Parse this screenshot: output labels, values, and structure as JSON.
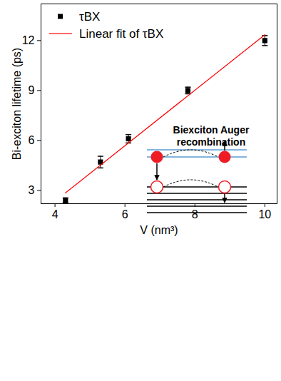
{
  "chart_data": {
    "type": "scatter",
    "x_label": "V (nm³)",
    "y_label": "Bi-exciton lifetime (ps)",
    "series": [
      {
        "name": "τBX",
        "type": "scatter",
        "marker": "square",
        "color": "#000000",
        "x": [
          4.3,
          5.3,
          6.1,
          7.8,
          10.0
        ],
        "values": [
          2.4,
          4.7,
          6.1,
          9.0,
          12.0
        ],
        "errors": [
          0.15,
          0.35,
          0.25,
          0.2,
          0.3
        ]
      },
      {
        "name": "Linear fit of τBX",
        "type": "line",
        "line_style": "solid",
        "color": "#ff0000",
        "x": [
          4.3,
          10.0
        ],
        "values": [
          2.85,
          12.35
        ]
      }
    ],
    "xlim": [
      3.6,
      10.35
    ],
    "ylim": [
      2.2,
      14.2
    ],
    "xticks": [
      4,
      6,
      8,
      10
    ],
    "yticks": [
      3,
      6,
      9,
      12
    ],
    "grid": false,
    "legend": "upper left",
    "annotation": "Biexciton Auger recombination"
  }
}
